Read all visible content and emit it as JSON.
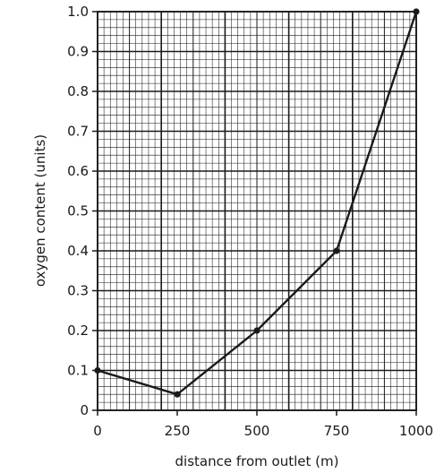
{
  "chart_data": {
    "type": "line",
    "xlabel": "distance from outlet (m)",
    "ylabel": "oxygen content (units)",
    "xlim": [
      0,
      1000
    ],
    "ylim": [
      0,
      1.0
    ],
    "x_ticks": [
      {
        "value": 0,
        "label": "0"
      },
      {
        "value": 250,
        "label": "250"
      },
      {
        "value": 500,
        "label": "500"
      },
      {
        "value": 750,
        "label": "750"
      },
      {
        "value": 1000,
        "label": "1000"
      }
    ],
    "y_ticks": [
      {
        "value": 0,
        "label": "0"
      },
      {
        "value": 0.1,
        "label": "0.1"
      },
      {
        "value": 0.2,
        "label": "0.2"
      },
      {
        "value": 0.3,
        "label": "0.3"
      },
      {
        "value": 0.4,
        "label": "0.4"
      },
      {
        "value": 0.5,
        "label": "0.5"
      },
      {
        "value": 0.6,
        "label": "0.6"
      },
      {
        "value": 0.7,
        "label": "0.7"
      },
      {
        "value": 0.8,
        "label": "0.8"
      },
      {
        "value": 0.9,
        "label": "0.9"
      },
      {
        "value": 1.0,
        "label": "1.0"
      }
    ],
    "grid": true,
    "grid_style": "graph paper: major lines every 250 m and 0.1 units, fine lines at fifths",
    "series": [
      {
        "x": [
          0,
          250,
          500,
          750,
          1000
        ],
        "y": [
          0.1,
          0.04,
          0.2,
          0.4,
          1.0
        ],
        "color": "#1a1a1a",
        "markers": true
      }
    ]
  }
}
